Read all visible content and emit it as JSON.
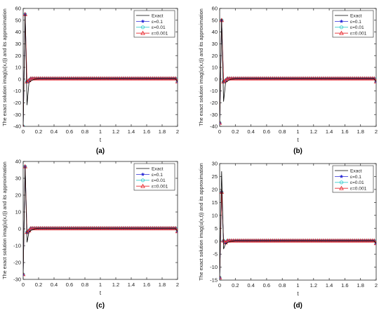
{
  "figure": {
    "colors": {
      "exact": "#000000",
      "eps01": "#2929d6",
      "eps001": "#33cccc",
      "eps0001": "#e8262b",
      "axis": "#262626",
      "grid": "#a0a0a0"
    }
  },
  "chart_data": [
    {
      "type": "line",
      "caption": "(a)",
      "xlabel": "t",
      "ylabel": "The exact solution imag(u(x,t)) and its approximation",
      "xlim": [
        0,
        2
      ],
      "ylim": [
        -40,
        60
      ],
      "xticks": [
        0,
        0.2,
        0.4,
        0.6,
        0.8,
        1,
        1.2,
        1.4,
        1.6,
        1.8,
        2
      ],
      "xtick_labels": [
        "0",
        "0.2",
        "0.4",
        "0.6",
        "0.8",
        "1",
        "1.2",
        "1.4",
        "1.6",
        "1.8",
        "2"
      ],
      "yticks": [
        -40,
        -30,
        -20,
        -10,
        0,
        10,
        20,
        30,
        40,
        50,
        60
      ],
      "ytick_labels": [
        "-40",
        "-30",
        "-20",
        "-10",
        "0",
        "10",
        "20",
        "30",
        "40",
        "50",
        "60"
      ],
      "legend_position": "top-right",
      "exact": {
        "name": "Exact",
        "x": [
          0,
          0.025,
          0.05,
          0.075,
          0.1,
          0.15,
          0.2,
          0.3,
          0.5,
          1,
          1.5,
          1.9,
          1.97,
          2
        ],
        "y": [
          -40,
          55,
          -22,
          -3,
          -1.5,
          0,
          0.5,
          0.5,
          0.5,
          0.5,
          0.5,
          0.5,
          0.5,
          -2
        ]
      },
      "series": [
        {
          "name": "ε=0.1",
          "marker": "star",
          "y0": -40,
          "y1": 55,
          "y2": -2,
          "y3": -1
        },
        {
          "name": "ε=0.01",
          "marker": "circle",
          "y0": -40,
          "y1": 55,
          "y2": -2,
          "y3": -1
        },
        {
          "name": "ε=0.001",
          "marker": "triangle",
          "y0": -40,
          "y1": 55,
          "y2": -2,
          "y3": -1
        }
      ],
      "markers_x": {
        "start": 0,
        "step": 0.025,
        "count": 81
      },
      "baseline": 0.5,
      "end_value": -2
    },
    {
      "type": "line",
      "caption": "(b)",
      "xlabel": "t",
      "ylabel": "The exact solution imag(u(x,t)) and its approximation",
      "xlim": [
        0,
        2
      ],
      "ylim": [
        -40,
        60
      ],
      "xticks": [
        0,
        0.2,
        0.4,
        0.6,
        0.8,
        1,
        1.2,
        1.4,
        1.6,
        1.8,
        2
      ],
      "xtick_labels": [
        "0",
        "0.2",
        "0.4",
        "0.6",
        "0.8",
        "1",
        "1.2",
        "1.4",
        "1.6",
        "1.8",
        "2"
      ],
      "yticks": [
        -40,
        -30,
        -20,
        -10,
        0,
        10,
        20,
        30,
        40,
        50,
        60
      ],
      "ytick_labels": [
        "-40",
        "-30",
        "-20",
        "-10",
        "0",
        "10",
        "20",
        "30",
        "40",
        "50",
        "60"
      ],
      "legend_position": "top-right",
      "exact": {
        "name": "Exact",
        "x": [
          0,
          0.025,
          0.05,
          0.075,
          0.1,
          0.15,
          0.2,
          0.3,
          0.5,
          1,
          1.5,
          1.9,
          1.97,
          2
        ],
        "y": [
          -37,
          51,
          -19,
          -3,
          -1.5,
          0,
          0.5,
          0.5,
          0.5,
          0.5,
          0.5,
          0.5,
          0.5,
          -2
        ]
      },
      "series": [
        {
          "name": "ε=0.1",
          "marker": "star",
          "y0": -37,
          "y1": 50,
          "y2": -2,
          "y3": -1
        },
        {
          "name": "ε=0.01",
          "marker": "circle",
          "y0": -37,
          "y1": 50,
          "y2": -2,
          "y3": -1
        },
        {
          "name": "ε=0.001",
          "marker": "triangle",
          "y0": -37,
          "y1": 50,
          "y2": -2,
          "y3": -1
        }
      ],
      "markers_x": {
        "start": 0,
        "step": 0.025,
        "count": 81
      },
      "baseline": 0.5,
      "end_value": -2
    },
    {
      "type": "line",
      "caption": "(c)",
      "xlabel": "t",
      "ylabel": "The exact solution imag(u(x,t)) and its approximation",
      "xlim": [
        0,
        2
      ],
      "ylim": [
        -30,
        40
      ],
      "xticks": [
        0,
        0.2,
        0.4,
        0.6,
        0.8,
        1,
        1.2,
        1.4,
        1.6,
        1.8,
        2
      ],
      "xtick_labels": [
        "0",
        "0.2",
        "0.4",
        "0.6",
        "0.8",
        "1",
        "1.2",
        "1.4",
        "1.6",
        "1.8",
        "2"
      ],
      "yticks": [
        -30,
        -20,
        -10,
        0,
        10,
        20,
        30,
        40
      ],
      "ytick_labels": [
        "-30",
        "-20",
        "-10",
        "0",
        "10",
        "20",
        "30",
        "40"
      ],
      "legend_position": "top-right",
      "exact": {
        "name": "Exact",
        "x": [
          0,
          0.025,
          0.05,
          0.075,
          0.1,
          0.15,
          0.2,
          0.3,
          0.5,
          1,
          1.5,
          1.9,
          1.97,
          2
        ],
        "y": [
          -27,
          37,
          -8,
          -2,
          -1,
          0,
          0.3,
          0.3,
          0.3,
          0.3,
          0.3,
          0.3,
          0.3,
          -1.5
        ]
      },
      "series": [
        {
          "name": "ε=0.1",
          "marker": "star",
          "y0": -27,
          "y1": 37,
          "y2": -2,
          "y3": -1
        },
        {
          "name": "ε=0.01",
          "marker": "circle",
          "y0": -27,
          "y1": 37,
          "y2": -2,
          "y3": -1
        },
        {
          "name": "ε=0.001",
          "marker": "triangle",
          "y0": -27,
          "y1": 37,
          "y2": -2,
          "y3": -1
        }
      ],
      "markers_x": {
        "start": 0,
        "step": 0.025,
        "count": 81
      },
      "baseline": 0.3,
      "end_value": -1.5
    },
    {
      "type": "line",
      "caption": "(d)",
      "xlabel": "t",
      "ylabel": "The exact solution imag(u(x,t)) and its approximation",
      "xlim": [
        0,
        2
      ],
      "ylim": [
        -15,
        30
      ],
      "xticks": [
        0,
        0.2,
        0.4,
        0.6,
        0.8,
        1,
        1.2,
        1.4,
        1.6,
        1.8,
        2
      ],
      "xtick_labels": [
        "0",
        "0.2",
        "0.4",
        "0.6",
        "0.8",
        "1",
        "1.2",
        "1.4",
        "1.6",
        "1.8",
        "2"
      ],
      "yticks": [
        -15,
        -10,
        -5,
        0,
        5,
        10,
        15,
        20,
        25,
        30
      ],
      "ytick_labels": [
        "-15",
        "-10",
        "-5",
        "0",
        "5",
        "10",
        "15",
        "20",
        "25",
        "30"
      ],
      "legend_position": "top-right",
      "exact": {
        "name": "Exact",
        "x": [
          0,
          0.025,
          0.05,
          0.075,
          0.1,
          0.15,
          0.2,
          0.3,
          0.5,
          1,
          1.5,
          1.9,
          1.97,
          2
        ],
        "y": [
          -14,
          27,
          -3,
          -1,
          -0.5,
          0,
          0.2,
          0.2,
          0.2,
          0.2,
          0.2,
          0.2,
          0.2,
          -0.8
        ]
      },
      "series": [
        {
          "name": "ε=0.1",
          "marker": "star",
          "y0": -14,
          "y1": 19,
          "y2": 0.2,
          "y3": -0.5
        },
        {
          "name": "ε=0.01",
          "marker": "circle",
          "y0": -14,
          "y1": 19,
          "y2": 0.2,
          "y3": -0.5
        },
        {
          "name": "ε=0.001",
          "marker": "triangle",
          "y0": -14,
          "y1": 19,
          "y2": 0.2,
          "y3": -0.5
        }
      ],
      "markers_x": {
        "start": 0,
        "step": 0.025,
        "count": 81
      },
      "baseline": 0.2,
      "end_value": -0.8
    }
  ]
}
